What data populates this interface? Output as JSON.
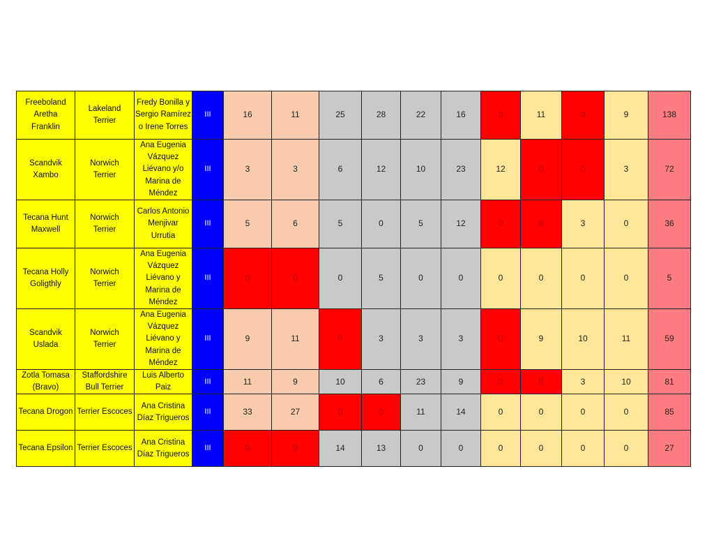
{
  "colors": {
    "info_bg": "#ffff00",
    "category_bg": "#0000ff",
    "group1_bg": "#f8cbad",
    "group2_bg": "#c9c9c9",
    "group3_bg": "#ffe699",
    "total_bg": "#ff7c80",
    "zero_highlight": "#ff0000"
  },
  "rows": [
    {
      "dog_lines": [
        "Freeboland",
        "Aretha",
        "Franklin"
      ],
      "breed_lines": [
        "Lakeland",
        "Terrier"
      ],
      "owner_lines": [
        "Fredy Bonilla y",
        "Sergio Ramírez",
        "o Irene Torres"
      ],
      "category": "III",
      "scores": [
        "16",
        "11",
        "25",
        "28",
        "22",
        "16",
        "0",
        "11",
        "0",
        "9"
      ],
      "total": "138"
    },
    {
      "dog_lines": [
        "Scandvik",
        "Xambo"
      ],
      "breed_lines": [
        "Norwich",
        "Terrier"
      ],
      "owner_lines": [
        "Ana Eugenia",
        "Vázquez",
        "Liévano y/o",
        "Marina de",
        "Méndez"
      ],
      "category": "III",
      "scores": [
        "3",
        "3",
        "6",
        "12",
        "10",
        "23",
        "12",
        "0",
        "0",
        "3"
      ],
      "total": "72"
    },
    {
      "dog_lines": [
        "Tecana Hunt",
        "Maxwell"
      ],
      "breed_lines": [
        "Norwich",
        "Terrier"
      ],
      "owner_lines": [
        "Carlos Antonio",
        "Menjivar",
        "Urrutia"
      ],
      "category": "III",
      "scores": [
        "5",
        "6",
        "5",
        "0",
        "5",
        "12",
        "0",
        "0",
        "3",
        "0"
      ],
      "total": "36"
    },
    {
      "dog_lines": [
        "Tecana Holly",
        "Goligthly"
      ],
      "breed_lines": [
        "Norwich",
        "Terrier"
      ],
      "owner_lines": [
        "Ana Eugenia",
        "Vázquez",
        "Liévano y",
        "Marina de",
        "Méndez"
      ],
      "category": "III",
      "scores": [
        "0",
        "0",
        "0",
        "5",
        "0",
        "0",
        "0",
        "0",
        "0",
        "0"
      ],
      "total": "5"
    },
    {
      "dog_lines": [
        "Scandvik",
        "Uslada"
      ],
      "breed_lines": [
        "Norwich",
        "Terrier"
      ],
      "owner_lines": [
        "Ana Eugenia",
        "Vázquez",
        "Liévano y",
        "Marina de",
        "Méndez"
      ],
      "category": "III",
      "scores": [
        "9",
        "11",
        "0",
        "3",
        "3",
        "3",
        "0",
        "9",
        "10",
        "11"
      ],
      "total": "59"
    },
    {
      "dog_lines": [
        "Zotla Tomasa",
        "(Bravo)"
      ],
      "breed_lines": [
        "Staffordshire",
        "Bull Terrier"
      ],
      "owner_lines": [
        "Luis Alberto",
        "Paiz"
      ],
      "category": "III",
      "scores": [
        "11",
        "9",
        "10",
        "6",
        "23",
        "9",
        "0",
        "0",
        "3",
        "10"
      ],
      "total": "81"
    },
    {
      "dog_lines": [
        "Tecana Drogon"
      ],
      "breed_lines": [
        "Terrier Escoces"
      ],
      "owner_lines": [
        "Ana Cristina",
        "Díaz Trigueros"
      ],
      "category": "III",
      "scores": [
        "33",
        "27",
        "0",
        "0",
        "11",
        "14",
        "0",
        "0",
        "0",
        "0"
      ],
      "total": "85"
    },
    {
      "dog_lines": [
        "Tecana Epsilon"
      ],
      "breed_lines": [
        "Terrier Escoces"
      ],
      "owner_lines": [
        "Ana Cristina",
        "Díaz Trigueros"
      ],
      "category": "III",
      "scores": [
        "0",
        "0",
        "14",
        "13",
        "0",
        "0",
        "0",
        "0",
        "0",
        "0"
      ],
      "total": "27"
    }
  ]
}
